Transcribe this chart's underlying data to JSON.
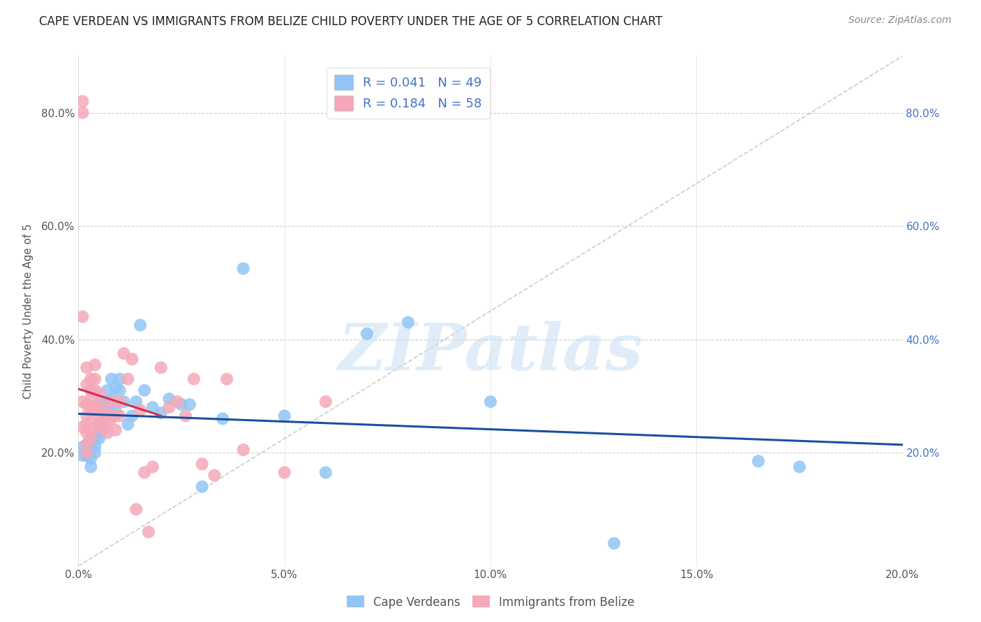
{
  "title": "CAPE VERDEAN VS IMMIGRANTS FROM BELIZE CHILD POVERTY UNDER THE AGE OF 5 CORRELATION CHART",
  "source": "Source: ZipAtlas.com",
  "ylabel": "Child Poverty Under the Age of 5",
  "xlim": [
    0,
    0.2
  ],
  "ylim": [
    0,
    0.9
  ],
  "blue_color": "#92C5F5",
  "pink_color": "#F5A8B8",
  "blue_line_color": "#1A4FA0",
  "pink_line_color": "#D03050",
  "blue_label": "Cape Verdeans",
  "pink_label": "Immigrants from Belize",
  "blue_R": 0.041,
  "blue_N": 49,
  "pink_R": 0.184,
  "pink_N": 58,
  "watermark": "ZIPatlas",
  "blue_points_x": [
    0.001,
    0.001,
    0.002,
    0.002,
    0.002,
    0.003,
    0.003,
    0.003,
    0.003,
    0.004,
    0.004,
    0.004,
    0.005,
    0.005,
    0.005,
    0.006,
    0.006,
    0.006,
    0.007,
    0.007,
    0.007,
    0.008,
    0.008,
    0.009,
    0.009,
    0.01,
    0.01,
    0.011,
    0.012,
    0.013,
    0.014,
    0.015,
    0.016,
    0.018,
    0.02,
    0.022,
    0.025,
    0.027,
    0.03,
    0.035,
    0.04,
    0.05,
    0.06,
    0.07,
    0.08,
    0.1,
    0.13,
    0.165,
    0.175
  ],
  "blue_points_y": [
    0.21,
    0.195,
    0.195,
    0.215,
    0.2,
    0.175,
    0.19,
    0.21,
    0.225,
    0.21,
    0.225,
    0.2,
    0.235,
    0.25,
    0.225,
    0.29,
    0.265,
    0.24,
    0.31,
    0.29,
    0.275,
    0.33,
    0.295,
    0.315,
    0.275,
    0.33,
    0.31,
    0.29,
    0.25,
    0.265,
    0.29,
    0.425,
    0.31,
    0.28,
    0.27,
    0.295,
    0.285,
    0.285,
    0.14,
    0.26,
    0.525,
    0.265,
    0.165,
    0.41,
    0.43,
    0.29,
    0.04,
    0.185,
    0.175
  ],
  "pink_points_x": [
    0.001,
    0.001,
    0.001,
    0.001,
    0.001,
    0.002,
    0.002,
    0.002,
    0.002,
    0.002,
    0.002,
    0.002,
    0.002,
    0.003,
    0.003,
    0.003,
    0.003,
    0.003,
    0.003,
    0.003,
    0.004,
    0.004,
    0.004,
    0.004,
    0.005,
    0.005,
    0.005,
    0.005,
    0.006,
    0.006,
    0.007,
    0.007,
    0.007,
    0.008,
    0.008,
    0.009,
    0.009,
    0.01,
    0.01,
    0.011,
    0.012,
    0.013,
    0.014,
    0.015,
    0.016,
    0.017,
    0.018,
    0.02,
    0.022,
    0.024,
    0.026,
    0.028,
    0.03,
    0.033,
    0.036,
    0.04,
    0.05,
    0.06
  ],
  "pink_points_y": [
    0.82,
    0.8,
    0.44,
    0.29,
    0.245,
    0.35,
    0.32,
    0.285,
    0.265,
    0.25,
    0.235,
    0.215,
    0.2,
    0.33,
    0.31,
    0.295,
    0.275,
    0.255,
    0.24,
    0.225,
    0.355,
    0.33,
    0.31,
    0.28,
    0.305,
    0.285,
    0.265,
    0.245,
    0.265,
    0.245,
    0.27,
    0.255,
    0.235,
    0.29,
    0.26,
    0.265,
    0.24,
    0.29,
    0.265,
    0.375,
    0.33,
    0.365,
    0.1,
    0.275,
    0.165,
    0.06,
    0.175,
    0.35,
    0.28,
    0.29,
    0.265,
    0.33,
    0.18,
    0.16,
    0.33,
    0.205,
    0.165,
    0.29
  ]
}
